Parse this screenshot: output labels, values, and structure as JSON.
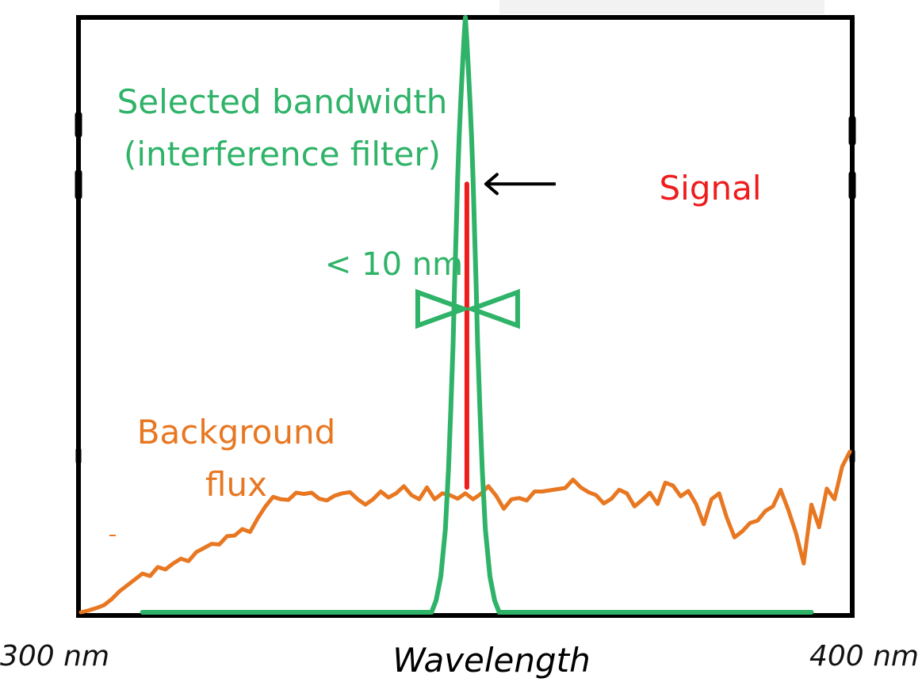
{
  "chart_data": {
    "type": "line",
    "xlim": [
      300,
      400
    ],
    "ylim": [
      0,
      1
    ],
    "grid": false,
    "xlabel": "Wavelength",
    "x_tick_labels": [
      "300 nm",
      "400 nm"
    ],
    "colors": {
      "filter": "#2fb368",
      "signal": "#ee1c1c",
      "background": "#e87722",
      "frame": "#000000",
      "arrow": "#000000"
    },
    "series": [
      {
        "key": "background",
        "x": [
          300,
          301,
          302,
          303,
          304,
          305,
          306,
          307,
          308,
          309,
          310,
          311,
          312,
          313,
          314,
          315,
          316,
          317,
          318,
          319,
          320,
          321,
          322,
          323,
          324,
          325,
          326,
          327,
          328,
          329,
          330,
          331,
          332,
          333,
          334,
          335,
          336,
          337,
          338,
          339,
          340,
          341,
          342,
          343,
          344,
          345,
          346,
          347,
          348,
          349,
          350,
          351,
          352,
          353,
          354,
          355,
          356,
          357,
          358,
          359,
          360,
          361,
          362,
          363,
          364,
          365,
          366,
          367,
          368,
          369,
          370,
          371,
          372,
          373,
          374,
          375,
          376,
          377,
          378,
          379,
          380,
          381,
          382,
          383,
          384,
          385,
          386,
          387,
          388,
          389,
          390,
          391,
          392,
          393,
          394,
          395,
          396,
          397,
          398,
          399,
          400
        ],
        "y": [
          0.0,
          0.003,
          0.007,
          0.012,
          0.022,
          0.035,
          0.045,
          0.055,
          0.065,
          0.061,
          0.076,
          0.072,
          0.082,
          0.09,
          0.086,
          0.101,
          0.108,
          0.115,
          0.114,
          0.128,
          0.129,
          0.14,
          0.135,
          0.158,
          0.178,
          0.194,
          0.19,
          0.189,
          0.201,
          0.199,
          0.201,
          0.191,
          0.188,
          0.196,
          0.2,
          0.202,
          0.19,
          0.181,
          0.19,
          0.203,
          0.193,
          0.2,
          0.212,
          0.197,
          0.19,
          0.21,
          0.19,
          0.2,
          0.197,
          0.191,
          0.2,
          0.19,
          0.199,
          0.212,
          0.196,
          0.174,
          0.19,
          0.192,
          0.188,
          0.203,
          0.203,
          0.205,
          0.207,
          0.209,
          0.223,
          0.21,
          0.202,
          0.197,
          0.183,
          0.191,
          0.206,
          0.2,
          0.178,
          0.189,
          0.201,
          0.182,
          0.218,
          0.213,
          0.195,
          0.204,
          0.182,
          0.148,
          0.19,
          0.2,
          0.159,
          0.126,
          0.136,
          0.15,
          0.154,
          0.17,
          0.178,
          0.206,
          0.172,
          0.133,
          0.082,
          0.181,
          0.143,
          0.208,
          0.19,
          0.245,
          0.27
        ]
      },
      {
        "key": "filter",
        "x": [
          308,
          339,
          345.6,
          346.2,
          346.8,
          347.4,
          347.8,
          348.1,
          348.4,
          348.6,
          348.8,
          349.0,
          349.2,
          349.4,
          349.6,
          349.8,
          350.0,
          350.2,
          350.4,
          350.6,
          350.8,
          351.0,
          351.2,
          351.4,
          351.6,
          351.9,
          352.2,
          352.6,
          353.2,
          353.8,
          354.4,
          361,
          395
        ],
        "y": [
          0.0,
          0.0,
          0.0,
          0.02,
          0.06,
          0.14,
          0.24,
          0.34,
          0.45,
          0.55,
          0.64,
          0.73,
          0.8,
          0.86,
          0.91,
          0.96,
          1.0,
          0.96,
          0.91,
          0.86,
          0.8,
          0.73,
          0.64,
          0.55,
          0.45,
          0.34,
          0.24,
          0.14,
          0.06,
          0.02,
          0.0,
          0.0,
          0.0
        ]
      },
      {
        "key": "signal",
        "x": [
          350.2,
          350.2
        ],
        "y": [
          0.21,
          0.72
        ]
      }
    ],
    "annotations": [
      {
        "key": "filter",
        "text_lines": [
          "Selected bandwidth",
          "(interference filter)"
        ]
      },
      {
        "key": "signal",
        "text_lines": [
          "Signal"
        ]
      },
      {
        "key": "bandwidth",
        "text_lines": [
          "< 10 nm"
        ]
      },
      {
        "key": "background",
        "text_lines": [
          "Background",
          "flux"
        ]
      }
    ]
  }
}
